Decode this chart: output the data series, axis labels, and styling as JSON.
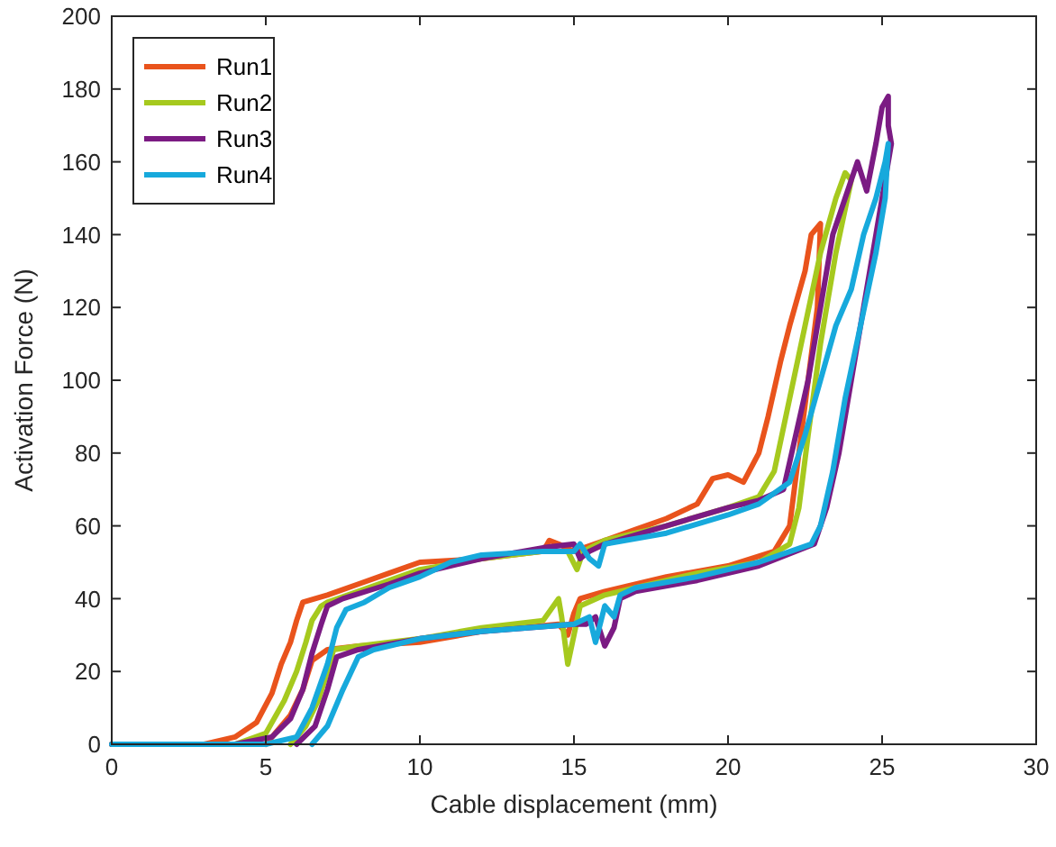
{
  "chart_data": {
    "type": "line",
    "xlabel": "Cable displacement (mm)",
    "ylabel": "Activation Force (N)",
    "xlim": [
      0,
      30
    ],
    "ylim": [
      0,
      200
    ],
    "xticks": [
      0,
      5,
      10,
      15,
      20,
      25,
      30
    ],
    "yticks": [
      0,
      20,
      40,
      60,
      80,
      100,
      120,
      140,
      160,
      180,
      200
    ],
    "grid": false,
    "legend": "top left",
    "marker": "none",
    "line_style": "solid",
    "series": [
      {
        "name": "Run1",
        "color": "#e9531c",
        "x": [
          0,
          3,
          4,
          4.7,
          5.2,
          5.5,
          5.8,
          6,
          6.2,
          6.6,
          7,
          8,
          9,
          10,
          12,
          14,
          14.2,
          14.5,
          15,
          16,
          17,
          18,
          19,
          19.5,
          20,
          20.5,
          21,
          21.3,
          21.7,
          22,
          22.5,
          22.7,
          23,
          22.9,
          22.6,
          22.3,
          22,
          21.5,
          20,
          18,
          16,
          15.2,
          15,
          14.8,
          14.5,
          12,
          10,
          8,
          7,
          6.5,
          6.2,
          5.8,
          5.3,
          5
        ],
        "values": [
          0,
          0,
          2,
          6,
          14,
          22,
          28,
          34,
          39,
          40,
          41,
          44,
          47,
          50,
          51,
          53,
          56,
          55,
          53,
          56,
          59,
          62,
          66,
          73,
          74,
          72,
          80,
          90,
          105,
          115,
          130,
          140,
          143,
          120,
          100,
          80,
          60,
          53,
          49,
          46,
          42,
          40,
          36,
          30,
          33,
          31,
          28,
          27,
          26,
          23,
          15,
          8,
          3,
          0
        ]
      },
      {
        "name": "Run2",
        "color": "#a6c91e",
        "x": [
          0,
          4,
          5,
          5.6,
          6,
          6.3,
          6.5,
          6.8,
          7,
          8,
          10,
          12,
          14,
          14.8,
          15.1,
          15.3,
          16,
          18,
          20,
          21,
          21.5,
          22,
          22.5,
          23,
          23.5,
          23.8,
          24,
          23.5,
          23,
          22.6,
          22.3,
          22,
          21,
          19,
          17,
          16,
          15.2,
          15,
          14.8,
          14.6,
          14.5,
          14,
          12,
          10,
          8,
          7.2,
          7,
          6.7,
          6.3,
          5.8
        ],
        "values": [
          0,
          0,
          3,
          12,
          20,
          28,
          34,
          38,
          39,
          42,
          48,
          51,
          53,
          53,
          48,
          53,
          56,
          60,
          65,
          68,
          75,
          95,
          115,
          135,
          150,
          157,
          155,
          135,
          110,
          85,
          65,
          55,
          50,
          47,
          43,
          41,
          38,
          30,
          22,
          35,
          40,
          34,
          32,
          29,
          27,
          26,
          20,
          12,
          5,
          0
        ]
      },
      {
        "name": "Run3",
        "color": "#7b1b83",
        "x": [
          0,
          4,
          5.2,
          5.8,
          6.2,
          6.5,
          6.8,
          7,
          7.5,
          9,
          10,
          12,
          14,
          15,
          15.2,
          15.5,
          16,
          18,
          20,
          21,
          21.8,
          22.2,
          22.6,
          23,
          23.4,
          23.8,
          24.2,
          24.5,
          24.8,
          25,
          25.2,
          25.2,
          25.3,
          24.8,
          24.4,
          24,
          23.6,
          23.2,
          22.8,
          21,
          19,
          17,
          16.5,
          16.3,
          16,
          15.7,
          15.4,
          15,
          12,
          10,
          8,
          7.3,
          7,
          6.6,
          6
        ],
        "values": [
          0,
          0,
          2,
          7,
          15,
          25,
          33,
          38,
          40,
          44,
          47,
          51,
          54,
          55,
          51,
          53,
          55,
          60,
          65,
          67,
          70,
          85,
          100,
          120,
          140,
          150,
          160,
          152,
          165,
          175,
          178,
          170,
          165,
          140,
          120,
          100,
          80,
          65,
          55,
          49,
          45,
          42,
          40,
          32,
          27,
          35,
          33,
          33,
          31,
          29,
          26,
          24,
          15,
          5,
          0
        ]
      },
      {
        "name": "Run4",
        "color": "#17a9dc",
        "x": [
          0,
          5,
          6,
          6.5,
          7,
          7.3,
          7.6,
          8.2,
          9,
          10,
          11,
          12,
          14,
          15,
          15.2,
          15.5,
          15.8,
          16,
          18,
          20,
          21,
          22,
          22.5,
          23,
          23.5,
          24,
          24.4,
          24.8,
          25.1,
          25.2,
          25.1,
          24.8,
          24.3,
          23.8,
          23.4,
          23,
          22.7,
          21,
          19,
          17,
          16.5,
          16.3,
          16,
          15.7,
          15.5,
          15,
          12,
          10,
          8.5,
          8,
          7.5,
          7,
          6.5
        ],
        "values": [
          0,
          0,
          2,
          10,
          22,
          32,
          37,
          39,
          43,
          46,
          50,
          52,
          53,
          53,
          55,
          51,
          49,
          55,
          58,
          63,
          66,
          72,
          85,
          100,
          115,
          125,
          140,
          150,
          160,
          165,
          150,
          135,
          115,
          95,
          75,
          60,
          55,
          50,
          46,
          43,
          41,
          35,
          38,
          28,
          35,
          33,
          31,
          29,
          26,
          24,
          15,
          5,
          0
        ]
      }
    ]
  }
}
